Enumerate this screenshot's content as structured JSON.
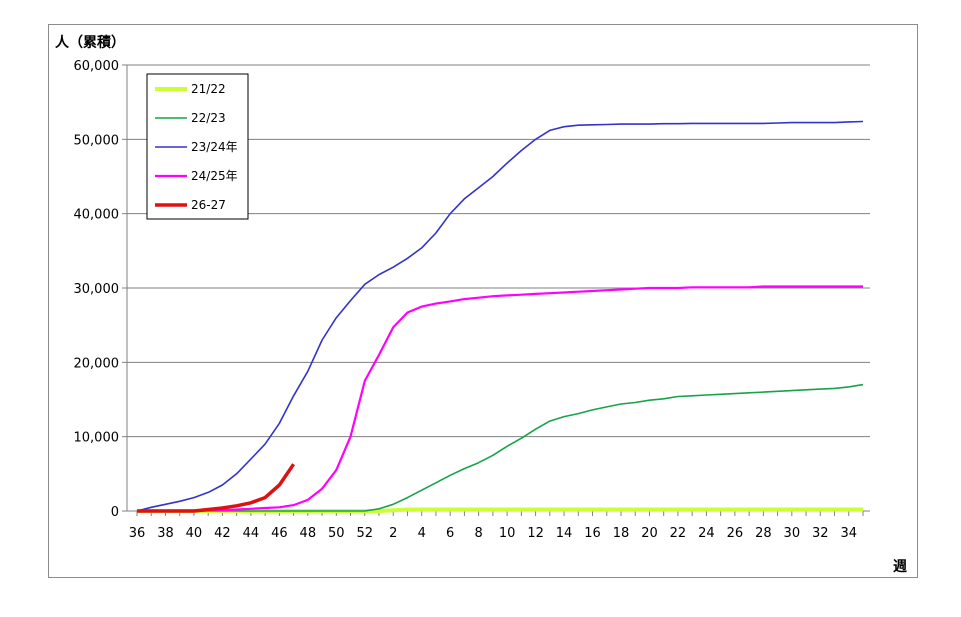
{
  "chart_data": {
    "type": "line",
    "ylabel": "人（累積）",
    "xlabel": "週",
    "ylim": [
      0,
      60000
    ],
    "yticks": [
      0,
      10000,
      20000,
      30000,
      40000,
      50000,
      60000
    ],
    "ytick_labels": [
      "0",
      "10,000",
      "20,000",
      "30,000",
      "40,000",
      "50,000",
      "60,000"
    ],
    "x_weeks": [
      36,
      37,
      38,
      39,
      40,
      41,
      42,
      43,
      44,
      45,
      46,
      47,
      48,
      49,
      50,
      51,
      52,
      1,
      2,
      3,
      4,
      5,
      6,
      7,
      8,
      9,
      10,
      11,
      12,
      13,
      14,
      15,
      16,
      17,
      18,
      19,
      20,
      21,
      22,
      23,
      24,
      25,
      26,
      27,
      28,
      29,
      30,
      31,
      32,
      33,
      34,
      35
    ],
    "x_tick_labels": [
      "36",
      "38",
      "40",
      "42",
      "44",
      "46",
      "48",
      "50",
      "52",
      "2",
      "4",
      "6",
      "8",
      "10",
      "12",
      "14",
      "16",
      "18",
      "20",
      "22",
      "24",
      "26",
      "28",
      "30",
      "32",
      "34"
    ],
    "grid": true,
    "legend_position": "top-left",
    "series": [
      {
        "name": "21/22",
        "color": "#ccff33",
        "width": 4,
        "values": [
          0,
          0,
          0,
          0,
          0,
          0,
          0,
          0,
          0,
          0,
          0,
          0,
          0,
          0,
          0,
          0,
          0,
          0,
          100,
          200,
          200,
          200,
          200,
          200,
          200,
          200,
          200,
          200,
          200,
          200,
          200,
          200,
          200,
          200,
          200,
          200,
          200,
          200,
          200,
          200,
          200,
          200,
          200,
          200,
          200,
          200,
          200,
          200,
          200,
          200,
          200,
          200
        ]
      },
      {
        "name": "22/23",
        "color": "#16a34a",
        "width": 1.6,
        "values": [
          0,
          0,
          0,
          0,
          0,
          0,
          0,
          0,
          0,
          0,
          0,
          0,
          0,
          0,
          0,
          0,
          0,
          300,
          900,
          1800,
          2800,
          3800,
          4800,
          5700,
          6500,
          7500,
          8700,
          9800,
          11000,
          12100,
          12700,
          13100,
          13600,
          14000,
          14400,
          14600,
          14900,
          15100,
          15400,
          15500,
          15600,
          15700,
          15800,
          15900,
          16000,
          16100,
          16200,
          16300,
          16400,
          16500,
          16700,
          17000
        ]
      },
      {
        "name": "23/24年",
        "color": "#3333cc",
        "width": 1.6,
        "values": [
          0,
          500,
          900,
          1300,
          1800,
          2500,
          3500,
          5000,
          7000,
          9000,
          11800,
          15500,
          18800,
          23000,
          26000,
          28300,
          30500,
          31800,
          32800,
          34000,
          35400,
          37400,
          40000,
          42000,
          43500,
          45000,
          46800,
          48500,
          50000,
          51200,
          51700,
          51900,
          51950,
          52000,
          52050,
          52050,
          52050,
          52100,
          52100,
          52150,
          52150,
          52150,
          52150,
          52150,
          52150,
          52200,
          52250,
          52250,
          52250,
          52250,
          52350,
          52400
        ]
      },
      {
        "name": "24/25年",
        "color": "#ff00ff",
        "width": 2.2,
        "values": [
          0,
          0,
          0,
          0,
          0,
          100,
          100,
          200,
          300,
          400,
          500,
          800,
          1500,
          3000,
          5500,
          10000,
          17500,
          21000,
          24700,
          26700,
          27500,
          27900,
          28200,
          28500,
          28700,
          28900,
          29000,
          29100,
          29200,
          29300,
          29400,
          29500,
          29600,
          29700,
          29800,
          29900,
          30000,
          30000,
          30000,
          30100,
          30100,
          30100,
          30100,
          30100,
          30200,
          30200,
          30200,
          30200,
          30200,
          30200,
          30200,
          30200
        ]
      },
      {
        "name": "26-27",
        "color": "#dd1111",
        "width": 3.5,
        "values": [
          0,
          0,
          0,
          0,
          0,
          200,
          400,
          700,
          1100,
          1800,
          3500,
          6300
        ]
      }
    ]
  }
}
